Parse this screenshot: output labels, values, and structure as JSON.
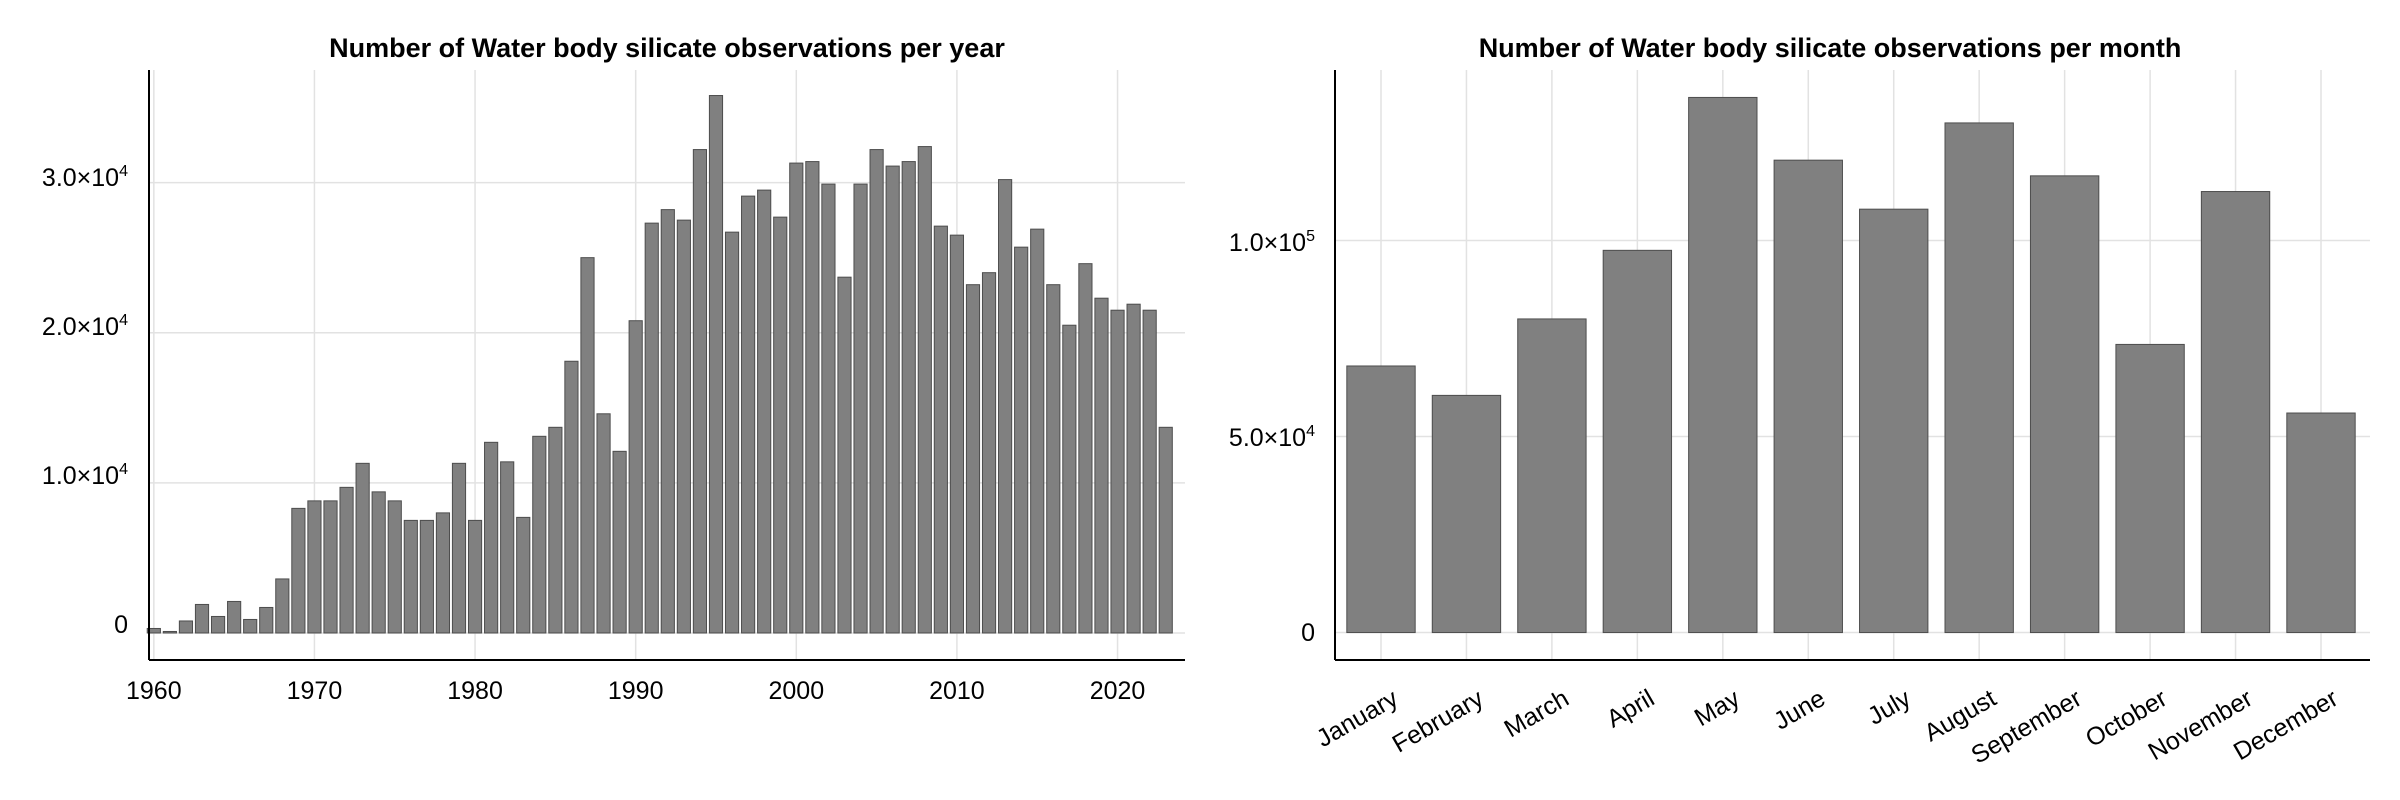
{
  "charts": [
    {
      "title": "Number of Water body silicate observations per year",
      "y_tick_labels": [
        {
          "mantissa": "0",
          "exp": ""
        },
        {
          "mantissa": "1.0×10",
          "exp": "4"
        },
        {
          "mantissa": "2.0×10",
          "exp": "4"
        },
        {
          "mantissa": "3.0×10",
          "exp": "4"
        }
      ],
      "x_tick_labels": [
        "1960",
        "1970",
        "1980",
        "1990",
        "2000",
        "2010",
        "2020"
      ]
    },
    {
      "title": "Number of Water body silicate observations per month",
      "y_tick_labels": [
        {
          "mantissa": "0",
          "exp": ""
        },
        {
          "mantissa": "5.0×10",
          "exp": "4"
        },
        {
          "mantissa": "1.0×10",
          "exp": "5"
        }
      ],
      "x_tick_labels": [
        "January",
        "February",
        "March",
        "April",
        "May",
        "June",
        "July",
        "August",
        "September",
        "October",
        "November",
        "December"
      ]
    }
  ],
  "chart_data": [
    {
      "type": "bar",
      "title": "Number of Water body silicate observations per year",
      "xlabel": "",
      "ylabel": "",
      "x": [
        1960,
        1961,
        1962,
        1963,
        1964,
        1965,
        1966,
        1967,
        1968,
        1969,
        1970,
        1971,
        1972,
        1973,
        1974,
        1975,
        1976,
        1977,
        1978,
        1979,
        1980,
        1981,
        1982,
        1983,
        1984,
        1985,
        1986,
        1987,
        1988,
        1989,
        1990,
        1991,
        1992,
        1993,
        1994,
        1995,
        1996,
        1997,
        1998,
        1999,
        2000,
        2001,
        2002,
        2003,
        2004,
        2005,
        2006,
        2007,
        2008,
        2009,
        2010,
        2011,
        2012,
        2013,
        2014,
        2015,
        2016,
        2017,
        2018,
        2019,
        2020,
        2021,
        2022,
        2023
      ],
      "values": [
        300,
        100,
        800,
        1900,
        1100,
        2100,
        900,
        1700,
        3600,
        8300,
        8800,
        8800,
        9700,
        11300,
        9400,
        8800,
        7500,
        7500,
        8000,
        11300,
        7500,
        12700,
        11400,
        7700,
        13100,
        13700,
        18100,
        25000,
        14600,
        12100,
        20800,
        27300,
        28200,
        27500,
        32200,
        35800,
        26700,
        29100,
        29500,
        27700,
        31300,
        31400,
        29900,
        23700,
        29900,
        32200,
        31100,
        31400,
        32400,
        27100,
        26500,
        23200,
        24000,
        30200,
        25700,
        26900,
        23200,
        20500,
        24600,
        22300,
        21500,
        21900,
        21500,
        13700
      ],
      "xlim": [
        1959.7,
        2024.2
      ],
      "xticks": [
        1960,
        1970,
        1980,
        1990,
        2000,
        2010,
        2020
      ],
      "ylim": [
        -1800,
        37500
      ],
      "yticks": [
        0,
        10000,
        20000,
        30000
      ],
      "grid": true,
      "bar_color": "#808080"
    },
    {
      "type": "bar",
      "title": "Number of Water body silicate observations per month",
      "xlabel": "",
      "ylabel": "",
      "categories": [
        "January",
        "February",
        "March",
        "April",
        "May",
        "June",
        "July",
        "August",
        "September",
        "October",
        "November",
        "December"
      ],
      "values": [
        68000,
        60500,
        80000,
        97500,
        136500,
        120500,
        108000,
        130000,
        116500,
        73500,
        112500,
        56000
      ],
      "ylim": [
        -7000,
        143500
      ],
      "yticks": [
        0,
        50000,
        100000
      ],
      "grid": true,
      "bar_color": "#808080"
    }
  ]
}
